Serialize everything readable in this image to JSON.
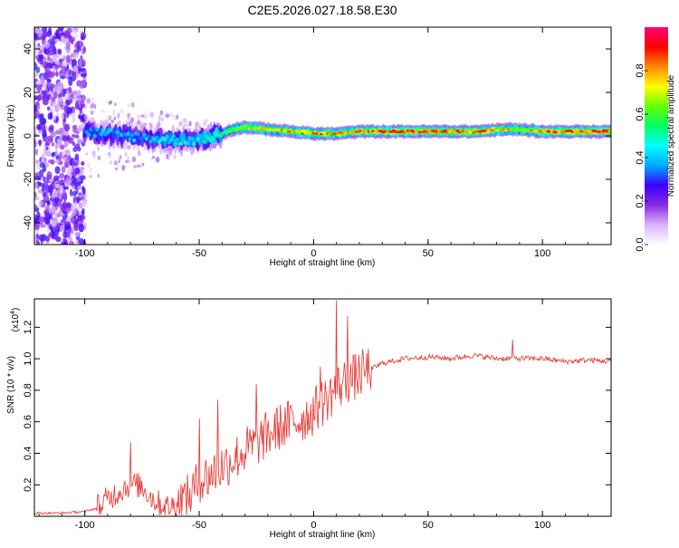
{
  "title": "C2E5.2026.027.18.58.E30",
  "chart_data": [
    {
      "type": "heatmap",
      "xlabel": "Height of straight line (km)",
      "ylabel": "Frequency (Hz)",
      "xlim": [
        -122,
        130
      ],
      "ylim": [
        -50,
        50
      ],
      "xticks": [
        -100,
        -50,
        0,
        50,
        100
      ],
      "yticks": [
        -40,
        -20,
        0,
        20,
        40
      ],
      "colorbar": {
        "label": "Normalized spectral amplitude",
        "range": [
          0,
          1
        ],
        "ticks": [
          "0.0",
          "0.2",
          "0.4",
          "0.6",
          "0.8"
        ],
        "colors": [
          "#ffffff",
          "#d9b3ff",
          "#8a2be2",
          "#3a00ff",
          "#00aaff",
          "#00ffff",
          "#00ff66",
          "#66ff00",
          "#ffff00",
          "#ff8800",
          "#ff0000",
          "#ff0077"
        ]
      },
      "ridge": {
        "x": [
          -100,
          -90,
          -80,
          -70,
          -60,
          -50,
          -40,
          -35,
          -30,
          -20,
          -10,
          0,
          10,
          20,
          30,
          50,
          70,
          85,
          90,
          100,
          130
        ],
        "frequency": [
          2,
          1,
          0,
          -1,
          -2,
          -2,
          1,
          3,
          4,
          3,
          2,
          1,
          1,
          2,
          2,
          2,
          2,
          3,
          3,
          2,
          2
        ],
        "peak_amplitude": [
          0.35,
          0.4,
          0.4,
          0.4,
          0.45,
          0.45,
          0.55,
          0.7,
          0.75,
          0.75,
          0.8,
          0.85,
          0.8,
          0.85,
          0.9,
          0.92,
          0.9,
          0.8,
          0.7,
          0.9,
          0.92
        ]
      },
      "noise_region": {
        "x": [
          -122,
          -100
        ],
        "frequency": [
          -50,
          50
        ],
        "amplitude": [
          0.05,
          0.3
        ]
      }
    },
    {
      "type": "line",
      "xlabel": "Height of straight line (km)",
      "ylabel": "SNR (10 * v/v)",
      "y_multiplier": "(x10",
      "y_multiplier_exp": "4",
      "xlim": [
        -122,
        130
      ],
      "ylim": [
        0,
        1.38
      ],
      "xticks": [
        -100,
        -50,
        0,
        50,
        100
      ],
      "yticks": [
        "0.2",
        "0.4",
        "0.6",
        "0.8",
        "1.0",
        "1.2"
      ],
      "line_color": "#e8332f",
      "series": [
        {
          "x": [
            -122,
            -110,
            -100,
            -95,
            -90,
            -85,
            -80,
            -75,
            -70,
            -65,
            -60,
            -55,
            -50,
            -45,
            -40,
            -35,
            -30,
            -25,
            -20,
            -15,
            -10,
            -5,
            0,
            5,
            10,
            15,
            20,
            25,
            30,
            40,
            50,
            60,
            70,
            80,
            90,
            100,
            110,
            120,
            130
          ],
          "y": [
            0.02,
            0.02,
            0.03,
            0.05,
            0.1,
            0.15,
            0.2,
            0.18,
            0.1,
            0.05,
            0.06,
            0.1,
            0.2,
            0.25,
            0.3,
            0.35,
            0.4,
            0.45,
            0.5,
            0.55,
            0.58,
            0.6,
            0.65,
            0.72,
            0.8,
            0.85,
            0.88,
            0.93,
            0.97,
            1.0,
            1.01,
            1.0,
            1.02,
            1.0,
            1.0,
            1.0,
            0.98,
            0.99,
            0.98
          ]
        }
      ],
      "spikes": [
        {
          "x": -80,
          "y": 0.47
        },
        {
          "x": -50,
          "y": 0.62
        },
        {
          "x": -42,
          "y": 0.74
        },
        {
          "x": -25,
          "y": 0.84
        },
        {
          "x": 3,
          "y": 0.95
        },
        {
          "x": 10,
          "y": 1.37
        },
        {
          "x": 15,
          "y": 1.27
        },
        {
          "x": 87,
          "y": 1.12
        }
      ]
    }
  ]
}
